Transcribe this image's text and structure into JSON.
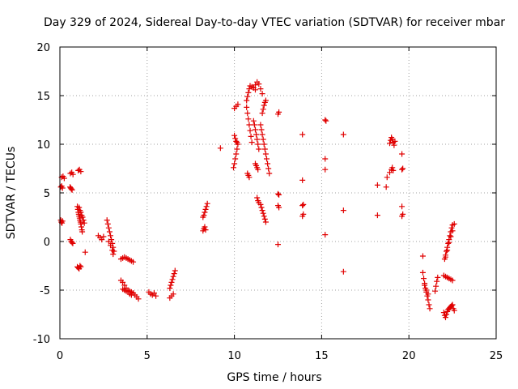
{
  "chart_data": {
    "type": "scatter",
    "title": "Day 329 of 2024, Sidereal Day-to-day VTEC variation (SDTVAR) for receiver mbar",
    "xlabel": "GPS time / hours",
    "ylabel": "SDTVAR / TECUs",
    "xlim": [
      0,
      25
    ],
    "ylim": [
      -10,
      20
    ],
    "xticks": [
      "0",
      "5",
      "10",
      "15",
      "20",
      "25"
    ],
    "yticks": [
      "-10",
      "-5",
      "0",
      "5",
      "10",
      "15",
      "20"
    ],
    "grid": true,
    "marker": "plus",
    "color": "#e00000",
    "series": [
      {
        "name": "SDTVAR",
        "points": [
          [
            0.05,
            2.2
          ],
          [
            0.08,
            2.0
          ],
          [
            0.12,
            1.9
          ],
          [
            0.15,
            2.1
          ],
          [
            0.05,
            5.6
          ],
          [
            0.1,
            5.7
          ],
          [
            0.15,
            5.5
          ],
          [
            0.1,
            6.6
          ],
          [
            0.18,
            6.7
          ],
          [
            0.25,
            6.5
          ],
          [
            0.6,
            7.0
          ],
          [
            0.68,
            7.1
          ],
          [
            0.75,
            6.9
          ],
          [
            0.58,
            5.6
          ],
          [
            0.62,
            5.5
          ],
          [
            0.66,
            5.4
          ],
          [
            0.7,
            5.3
          ],
          [
            0.6,
            0.2
          ],
          [
            0.65,
            0.0
          ],
          [
            0.7,
            -0.1
          ],
          [
            0.74,
            -0.2
          ],
          [
            1.05,
            7.3
          ],
          [
            1.12,
            7.4
          ],
          [
            1.2,
            7.2
          ],
          [
            1.0,
            3.6
          ],
          [
            1.03,
            3.3
          ],
          [
            1.06,
            3.0
          ],
          [
            1.08,
            2.8
          ],
          [
            1.1,
            2.6
          ],
          [
            1.13,
            2.4
          ],
          [
            1.15,
            2.2
          ],
          [
            1.18,
            2.0
          ],
          [
            1.2,
            1.8
          ],
          [
            1.23,
            1.5
          ],
          [
            1.26,
            1.2
          ],
          [
            1.28,
            1.0
          ],
          [
            1.1,
            3.5
          ],
          [
            1.15,
            3.2
          ],
          [
            1.2,
            3.0
          ],
          [
            1.25,
            2.7
          ],
          [
            1.3,
            2.5
          ],
          [
            1.35,
            2.2
          ],
          [
            1.4,
            1.9
          ],
          [
            1.0,
            -2.6
          ],
          [
            1.05,
            -2.7
          ],
          [
            1.1,
            -2.8
          ],
          [
            1.15,
            -2.5
          ],
          [
            1.2,
            -2.6
          ],
          [
            1.45,
            -1.1
          ],
          [
            2.2,
            0.6
          ],
          [
            2.3,
            0.4
          ],
          [
            2.4,
            0.2
          ],
          [
            2.5,
            0.5
          ],
          [
            2.7,
            2.2
          ],
          [
            2.75,
            1.8
          ],
          [
            2.8,
            1.4
          ],
          [
            2.85,
            1.0
          ],
          [
            2.9,
            0.6
          ],
          [
            2.95,
            0.2
          ],
          [
            3.0,
            -0.2
          ],
          [
            3.05,
            -0.6
          ],
          [
            3.1,
            -1.0
          ],
          [
            2.8,
            0.0
          ],
          [
            2.9,
            -0.4
          ],
          [
            3.0,
            -0.9
          ],
          [
            3.05,
            -1.3
          ],
          [
            3.5,
            -1.8
          ],
          [
            3.6,
            -1.7
          ],
          [
            3.7,
            -1.6
          ],
          [
            3.8,
            -1.7
          ],
          [
            3.9,
            -1.8
          ],
          [
            4.0,
            -1.9
          ],
          [
            4.1,
            -2.0
          ],
          [
            4.2,
            -2.1
          ],
          [
            3.5,
            -4.0
          ],
          [
            3.6,
            -4.2
          ],
          [
            3.7,
            -4.5
          ],
          [
            3.8,
            -4.8
          ],
          [
            3.9,
            -5.0
          ],
          [
            4.0,
            -5.1
          ],
          [
            4.1,
            -5.2
          ],
          [
            4.2,
            -5.3
          ],
          [
            4.3,
            -5.5
          ],
          [
            4.4,
            -5.7
          ],
          [
            4.5,
            -5.9
          ],
          [
            3.6,
            -4.9
          ],
          [
            3.7,
            -5.0
          ],
          [
            3.8,
            -5.1
          ],
          [
            3.9,
            -5.2
          ],
          [
            4.0,
            -5.4
          ],
          [
            4.1,
            -5.5
          ],
          [
            5.1,
            -5.2
          ],
          [
            5.2,
            -5.4
          ],
          [
            5.3,
            -5.5
          ],
          [
            5.4,
            -5.3
          ],
          [
            5.5,
            -5.6
          ],
          [
            6.3,
            -5.8
          ],
          [
            6.4,
            -5.6
          ],
          [
            6.5,
            -5.4
          ],
          [
            6.3,
            -4.8
          ],
          [
            6.35,
            -4.5
          ],
          [
            6.4,
            -4.2
          ],
          [
            6.45,
            -3.9
          ],
          [
            6.5,
            -3.6
          ],
          [
            6.55,
            -3.3
          ],
          [
            6.6,
            -3.0
          ],
          [
            8.2,
            1.1
          ],
          [
            8.25,
            1.3
          ],
          [
            8.3,
            1.5
          ],
          [
            8.35,
            1.2
          ],
          [
            8.2,
            2.5
          ],
          [
            8.25,
            2.7
          ],
          [
            8.3,
            3.0
          ],
          [
            8.35,
            3.3
          ],
          [
            8.4,
            3.6
          ],
          [
            8.45,
            3.9
          ],
          [
            9.2,
            9.6
          ],
          [
            9.95,
            7.6
          ],
          [
            10.0,
            8.0
          ],
          [
            10.05,
            8.5
          ],
          [
            10.1,
            9.0
          ],
          [
            10.15,
            9.5
          ],
          [
            10.2,
            10.0
          ],
          [
            10.0,
            10.9
          ],
          [
            10.05,
            10.6
          ],
          [
            10.1,
            10.3
          ],
          [
            10.15,
            10.2
          ],
          [
            10.0,
            13.7
          ],
          [
            10.1,
            13.9
          ],
          [
            10.2,
            14.1
          ],
          [
            10.7,
            14.5
          ],
          [
            10.75,
            14.9
          ],
          [
            10.8,
            15.3
          ],
          [
            10.85,
            15.7
          ],
          [
            10.9,
            16.0
          ],
          [
            11.0,
            15.9
          ],
          [
            11.1,
            15.8
          ],
          [
            11.2,
            15.6
          ],
          [
            10.7,
            13.8
          ],
          [
            10.75,
            13.2
          ],
          [
            10.8,
            12.6
          ],
          [
            10.85,
            12.0
          ],
          [
            10.9,
            11.4
          ],
          [
            10.95,
            10.8
          ],
          [
            11.0,
            10.2
          ],
          [
            10.75,
            7.0
          ],
          [
            10.8,
            6.8
          ],
          [
            10.85,
            6.6
          ],
          [
            11.2,
            16.1
          ],
          [
            11.3,
            16.4
          ],
          [
            11.4,
            16.2
          ],
          [
            11.5,
            15.7
          ],
          [
            11.6,
            15.2
          ],
          [
            11.1,
            12.4
          ],
          [
            11.15,
            12.0
          ],
          [
            11.2,
            11.5
          ],
          [
            11.25,
            11.0
          ],
          [
            11.3,
            10.5
          ],
          [
            11.35,
            10.0
          ],
          [
            11.4,
            9.5
          ],
          [
            11.2,
            8.0
          ],
          [
            11.25,
            7.8
          ],
          [
            11.3,
            7.6
          ],
          [
            11.35,
            7.4
          ],
          [
            11.3,
            4.5
          ],
          [
            11.35,
            4.2
          ],
          [
            11.4,
            4.0
          ],
          [
            11.5,
            3.8
          ],
          [
            11.55,
            3.5
          ],
          [
            11.6,
            3.2
          ],
          [
            11.65,
            2.9
          ],
          [
            11.7,
            2.6
          ],
          [
            11.75,
            2.3
          ],
          [
            11.8,
            2.0
          ],
          [
            11.6,
            13.2
          ],
          [
            11.65,
            13.6
          ],
          [
            11.7,
            14.0
          ],
          [
            11.75,
            14.3
          ],
          [
            11.8,
            14.5
          ],
          [
            11.5,
            12.0
          ],
          [
            11.55,
            11.5
          ],
          [
            11.6,
            11.0
          ],
          [
            11.65,
            10.5
          ],
          [
            11.7,
            10.0
          ],
          [
            11.75,
            9.5
          ],
          [
            11.8,
            9.0
          ],
          [
            11.85,
            8.5
          ],
          [
            11.9,
            8.0
          ],
          [
            11.95,
            7.5
          ],
          [
            12.0,
            7.0
          ],
          [
            12.5,
            13.1
          ],
          [
            12.55,
            13.3
          ],
          [
            12.5,
            4.9
          ],
          [
            12.55,
            4.8
          ],
          [
            12.5,
            3.7
          ],
          [
            12.55,
            3.5
          ],
          [
            12.5,
            -0.3
          ],
          [
            13.9,
            11.0
          ],
          [
            13.9,
            6.3
          ],
          [
            13.9,
            3.7
          ],
          [
            13.95,
            3.8
          ],
          [
            13.9,
            2.6
          ],
          [
            13.95,
            2.8
          ],
          [
            15.2,
            12.5
          ],
          [
            15.25,
            12.4
          ],
          [
            15.2,
            8.5
          ],
          [
            15.2,
            7.4
          ],
          [
            15.2,
            0.7
          ],
          [
            16.25,
            11.0
          ],
          [
            16.25,
            3.2
          ],
          [
            16.25,
            -3.1
          ],
          [
            18.2,
            5.8
          ],
          [
            18.2,
            2.7
          ],
          [
            18.7,
            5.6
          ],
          [
            18.75,
            6.6
          ],
          [
            18.9,
            7.1
          ],
          [
            19.0,
            7.4
          ],
          [
            19.05,
            7.6
          ],
          [
            19.1,
            7.3
          ],
          [
            18.9,
            10.1
          ],
          [
            18.95,
            10.4
          ],
          [
            19.0,
            10.7
          ],
          [
            19.05,
            10.5
          ],
          [
            19.1,
            10.2
          ],
          [
            19.15,
            9.9
          ],
          [
            19.2,
            10.3
          ],
          [
            19.6,
            9.0
          ],
          [
            19.6,
            7.4
          ],
          [
            19.65,
            7.5
          ],
          [
            19.6,
            3.6
          ],
          [
            19.6,
            2.6
          ],
          [
            19.65,
            2.8
          ],
          [
            20.8,
            -1.5
          ],
          [
            20.8,
            -3.2
          ],
          [
            20.85,
            -3.8
          ],
          [
            20.9,
            -4.3
          ],
          [
            20.95,
            -4.8
          ],
          [
            21.0,
            -5.2
          ],
          [
            21.05,
            -5.6
          ],
          [
            21.1,
            -6.0
          ],
          [
            21.15,
            -6.5
          ],
          [
            21.2,
            -6.9
          ],
          [
            20.9,
            -4.5
          ],
          [
            21.0,
            -5.0
          ],
          [
            21.1,
            -5.4
          ],
          [
            21.5,
            -5.1
          ],
          [
            21.55,
            -4.6
          ],
          [
            21.6,
            -4.1
          ],
          [
            21.65,
            -3.7
          ],
          [
            22.0,
            -7.3
          ],
          [
            22.05,
            -7.6
          ],
          [
            22.1,
            -7.8
          ],
          [
            22.15,
            -7.5
          ],
          [
            22.2,
            -7.2
          ],
          [
            22.25,
            -7.0
          ],
          [
            22.3,
            -6.9
          ],
          [
            22.35,
            -6.8
          ],
          [
            22.4,
            -6.7
          ],
          [
            22.45,
            -6.6
          ],
          [
            22.5,
            -6.5
          ],
          [
            22.55,
            -6.9
          ],
          [
            22.6,
            -7.1
          ],
          [
            22.0,
            -3.5
          ],
          [
            22.1,
            -3.6
          ],
          [
            22.2,
            -3.7
          ],
          [
            22.3,
            -3.8
          ],
          [
            22.4,
            -3.9
          ],
          [
            22.5,
            -4.0
          ],
          [
            22.05,
            -1.8
          ],
          [
            22.1,
            -1.4
          ],
          [
            22.15,
            -1.0
          ],
          [
            22.2,
            -0.6
          ],
          [
            22.25,
            -0.2
          ],
          [
            22.3,
            0.2
          ],
          [
            22.35,
            0.6
          ],
          [
            22.4,
            1.0
          ],
          [
            22.45,
            1.4
          ],
          [
            22.5,
            1.7
          ],
          [
            22.1,
            -1.6
          ],
          [
            22.2,
            -0.9
          ],
          [
            22.3,
            -0.1
          ],
          [
            22.4,
            0.5
          ],
          [
            22.5,
            1.1
          ],
          [
            22.6,
            1.8
          ]
        ]
      }
    ]
  }
}
